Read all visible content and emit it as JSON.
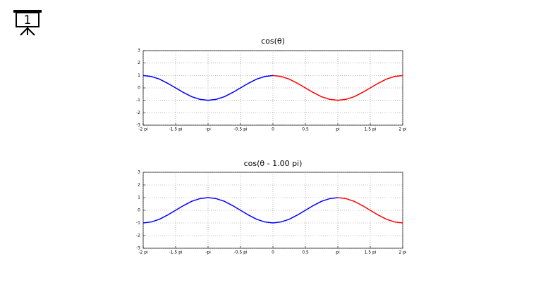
{
  "slide_icon_label": "1",
  "chart_data": [
    {
      "type": "line",
      "title": "cos(θ)",
      "x": [
        -2,
        -1.875,
        -1.75,
        -1.625,
        -1.5,
        -1.375,
        -1.25,
        -1.125,
        -1,
        -0.875,
        -0.75,
        -0.625,
        -0.5,
        -0.375,
        -0.25,
        -0.125,
        0,
        0.125,
        0.25,
        0.375,
        0.5,
        0.625,
        0.75,
        0.875,
        1,
        1.125,
        1.25,
        1.375,
        1.5,
        1.625,
        1.75,
        1.875,
        2
      ],
      "series": [
        {
          "color": "#0000ff",
          "values": [
            1,
            0.92,
            0.71,
            0.38,
            0,
            -0.38,
            -0.71,
            -0.92,
            -1,
            -0.92,
            -0.71,
            -0.38,
            0,
            0.38,
            0.71,
            0.92,
            1,
            null,
            null,
            null,
            null,
            null,
            null,
            null,
            null,
            null,
            null,
            null,
            null,
            null,
            null,
            null,
            null
          ]
        },
        {
          "color": "#ff0000",
          "values": [
            null,
            null,
            null,
            null,
            null,
            null,
            null,
            null,
            null,
            null,
            null,
            null,
            null,
            null,
            null,
            null,
            1,
            0.92,
            0.71,
            0.38,
            0,
            -0.38,
            -0.71,
            -0.92,
            -1,
            -0.92,
            -0.71,
            -0.38,
            0,
            0.38,
            0.71,
            0.92,
            1
          ]
        }
      ],
      "xlim": [
        -2,
        2
      ],
      "xticks": [
        {
          "value": -2,
          "label": "-2 pi"
        },
        {
          "value": -1.5,
          "label": "-1.5 pi"
        },
        {
          "value": -1,
          "label": "-pi"
        },
        {
          "value": -0.5,
          "label": "-0.5 pi"
        },
        0,
        0.5,
        {
          "value": 1,
          "label": "pi"
        },
        {
          "value": 1.5,
          "label": "1.5 pi"
        },
        {
          "value": 2,
          "label": "2 pi"
        }
      ],
      "ylim": [
        -3,
        3
      ],
      "yticks": [
        -3,
        -2,
        -1,
        0,
        1,
        2,
        3
      ],
      "grid": true
    },
    {
      "type": "line",
      "title": "cos(θ - 1.00 pi)",
      "x": [
        -2,
        -1.875,
        -1.75,
        -1.625,
        -1.5,
        -1.375,
        -1.25,
        -1.125,
        -1,
        -0.875,
        -0.75,
        -0.625,
        -0.5,
        -0.375,
        -0.25,
        -0.125,
        0,
        0.125,
        0.25,
        0.375,
        0.5,
        0.625,
        0.75,
        0.875,
        1,
        1.125,
        1.25,
        1.375,
        1.5,
        1.625,
        1.75,
        1.875,
        2
      ],
      "series": [
        {
          "color": "#0000ff",
          "values": [
            -1,
            -0.92,
            -0.71,
            -0.38,
            0,
            0.38,
            0.71,
            0.92,
            1,
            0.92,
            0.71,
            0.38,
            0,
            -0.38,
            -0.71,
            -0.92,
            -1,
            -0.92,
            -0.71,
            -0.38,
            0,
            0.38,
            0.71,
            0.92,
            1,
            null,
            null,
            null,
            null,
            null,
            null,
            null,
            null
          ]
        },
        {
          "color": "#ff0000",
          "values": [
            null,
            null,
            null,
            null,
            null,
            null,
            null,
            null,
            null,
            null,
            null,
            null,
            null,
            null,
            null,
            null,
            null,
            null,
            null,
            null,
            null,
            null,
            null,
            null,
            1,
            0.92,
            0.71,
            0.38,
            0,
            -0.38,
            -0.71,
            -0.92,
            -1
          ]
        }
      ],
      "xlim": [
        -2,
        2
      ],
      "xticks": [
        {
          "value": -2,
          "label": "-2 pi"
        },
        {
          "value": -1.5,
          "label": "-1.5 pi"
        },
        {
          "value": -1,
          "label": "-pi"
        },
        {
          "value": -0.5,
          "label": "-0.5 pi"
        },
        0,
        0.5,
        {
          "value": 1,
          "label": "pi"
        },
        {
          "value": 1.5,
          "label": "1.5 pi"
        },
        {
          "value": 2,
          "label": "2 pi"
        }
      ],
      "ylim": [
        -3,
        3
      ],
      "yticks": [
        -3,
        -2,
        -1,
        0,
        1,
        2,
        3
      ],
      "grid": true
    }
  ]
}
